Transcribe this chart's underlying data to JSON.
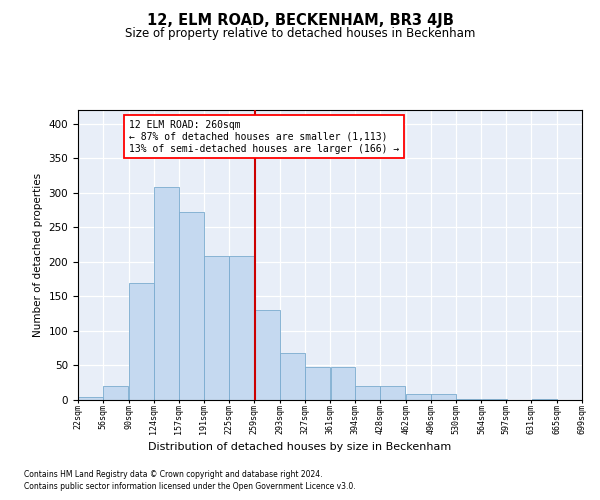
{
  "title": "12, ELM ROAD, BECKENHAM, BR3 4JB",
  "subtitle": "Size of property relative to detached houses in Beckenham",
  "xlabel": "Distribution of detached houses by size in Beckenham",
  "ylabel": "Number of detached properties",
  "footnote1": "Contains HM Land Registry data © Crown copyright and database right 2024.",
  "footnote2": "Contains public sector information licensed under the Open Government Licence v3.0.",
  "property_size": 260,
  "annotation_line1": "12 ELM ROAD: 260sqm",
  "annotation_line2": "← 87% of detached houses are smaller (1,113)",
  "annotation_line3": "13% of semi-detached houses are larger (166) →",
  "bar_color": "#c5d9f0",
  "bar_edge_color": "#7aabcf",
  "vline_color": "#cc0000",
  "bg_color": "#e8eef8",
  "bins": [
    22,
    56,
    90,
    124,
    157,
    191,
    225,
    259,
    293,
    327,
    361,
    394,
    428,
    462,
    496,
    530,
    564,
    597,
    631,
    665,
    699
  ],
  "bin_labels": [
    "22sqm",
    "56sqm",
    "90sqm",
    "124sqm",
    "157sqm",
    "191sqm",
    "225sqm",
    "259sqm",
    "293sqm",
    "327sqm",
    "361sqm",
    "394sqm",
    "428sqm",
    "462sqm",
    "496sqm",
    "530sqm",
    "564sqm",
    "597sqm",
    "631sqm",
    "665sqm",
    "699sqm"
  ],
  "counts": [
    5,
    20,
    170,
    308,
    272,
    208,
    208,
    130,
    68,
    48,
    48,
    20,
    20,
    8,
    8,
    2,
    2,
    0,
    2,
    0,
    2
  ],
  "ylim": [
    0,
    420
  ],
  "yticks": [
    0,
    50,
    100,
    150,
    200,
    250,
    300,
    350,
    400
  ],
  "figsize": [
    6.0,
    5.0
  ],
  "dpi": 100
}
